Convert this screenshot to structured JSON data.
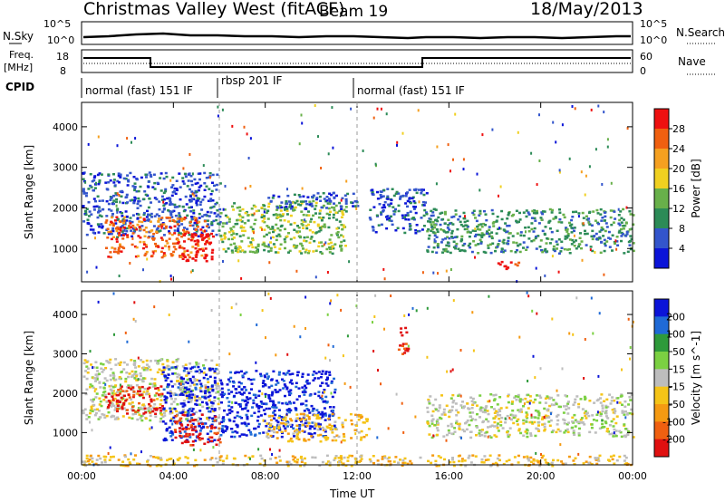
{
  "header": {
    "title": "Christmas Valley West (fitACF)",
    "beam": "Beam 19",
    "date": "18/May/2013"
  },
  "noise_panel": {
    "left_label": "N.Sky",
    "right_label": "N.Search",
    "left_ticks": [
      "10^5",
      "10^0"
    ],
    "right_ticks": [
      "10^5",
      "10^0"
    ]
  },
  "freq_panel": {
    "left_label_1": "Freq.",
    "left_label_2": "[MHz]",
    "right_label": "Nave",
    "left_ticks": [
      "18",
      "8"
    ],
    "right_ticks": [
      "60",
      "0"
    ]
  },
  "cpid": {
    "label": "CPID",
    "segments": [
      {
        "text": "normal (fast) 151 IF",
        "start_hour": 0
      },
      {
        "text": "rbsp 201 IF",
        "start_hour": 6
      },
      {
        "text": "normal (fast) 151 IF",
        "start_hour": 12
      }
    ]
  },
  "colors": {
    "power": [
      "#0b14d8",
      "#3355cc",
      "#2c8b57",
      "#68b04a",
      "#f0d020",
      "#f5a020",
      "#f06010",
      "#ee1010"
    ],
    "velocity": [
      "#0b14d8",
      "#1f6ad6",
      "#2e9a3a",
      "#7bd042",
      "#bdbdbd",
      "#f5c418",
      "#f59a12",
      "#f06010",
      "#e01010"
    ]
  },
  "chart_data": [
    {
      "type": "heatmap",
      "title": "",
      "xlabel": "",
      "ylabel": "Slant Range [km]",
      "x_ticks": [
        "00:00",
        "04:00",
        "08:00",
        "12:00",
        "16:00",
        "20:00",
        "00:00"
      ],
      "y_ticks": [
        "1000",
        "2000",
        "3000",
        "4000"
      ],
      "xlim": [
        0,
        24
      ],
      "ylim": [
        180,
        4600
      ],
      "colorbar": {
        "label": "Power [dB]",
        "ticks": [
          "4",
          "8",
          "12",
          "16",
          "20",
          "24",
          "28"
        ]
      },
      "regions": [
        {
          "x": [
            0.0,
            6.0
          ],
          "y": [
            1300,
            2900
          ],
          "level": 1
        },
        {
          "x": [
            1.0,
            5.5
          ],
          "y": [
            800,
            1800
          ],
          "level": 6
        },
        {
          "x": [
            4.3,
            5.7
          ],
          "y": [
            700,
            1400
          ],
          "level": 8
        },
        {
          "x": [
            6.0,
            11.5
          ],
          "y": [
            900,
            2200
          ],
          "level": 3
        },
        {
          "x": [
            8.0,
            12.0
          ],
          "y": [
            2000,
            2400
          ],
          "level": 1
        },
        {
          "x": [
            12.5,
            15.0
          ],
          "y": [
            1400,
            2500
          ],
          "level": 1
        },
        {
          "x": [
            15.0,
            24.0
          ],
          "y": [
            900,
            2000
          ],
          "level": 2
        },
        {
          "x": [
            17.8,
            19.0
          ],
          "y": [
            500,
            700
          ],
          "level": 7
        }
      ]
    },
    {
      "type": "heatmap",
      "title": "",
      "xlabel": "Time UT",
      "ylabel": "Slant Range [km]",
      "x_ticks": [
        "00:00",
        "04:00",
        "08:00",
        "12:00",
        "16:00",
        "20:00",
        "00:00"
      ],
      "y_ticks": [
        "1000",
        "2000",
        "3000",
        "4000"
      ],
      "xlim": [
        0,
        24
      ],
      "ylim": [
        180,
        4600
      ],
      "colorbar": {
        "label": "Velocity [m s^-1]",
        "ticks": [
          "200",
          "100",
          "50",
          "15",
          "-15",
          "-50",
          "-100",
          "-200"
        ]
      },
      "regions": [
        {
          "x": [
            0.0,
            6.0
          ],
          "y": [
            1300,
            2900
          ],
          "level": 4
        },
        {
          "x": [
            1.0,
            3.5
          ],
          "y": [
            1500,
            2200
          ],
          "level": 8
        },
        {
          "x": [
            3.5,
            5.8
          ],
          "y": [
            800,
            2700
          ],
          "level": 0
        },
        {
          "x": [
            4.0,
            6.0
          ],
          "y": [
            700,
            1500
          ],
          "level": 8
        },
        {
          "x": [
            6.0,
            11.0
          ],
          "y": [
            900,
            2600
          ],
          "level": 0
        },
        {
          "x": [
            8.0,
            12.5
          ],
          "y": [
            800,
            1500
          ],
          "level": 5
        },
        {
          "x": [
            13.7,
            14.2
          ],
          "y": [
            3000,
            3700
          ],
          "level": 8
        },
        {
          "x": [
            15.0,
            24.0
          ],
          "y": [
            900,
            2000
          ],
          "level": 4
        },
        {
          "x": [
            0.0,
            24.0
          ],
          "y": [
            180,
            450
          ],
          "level": 5
        }
      ]
    }
  ]
}
